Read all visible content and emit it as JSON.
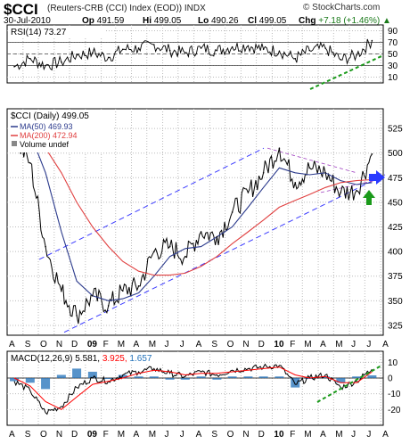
{
  "header": {
    "symbol": "$CCI",
    "name": "(Reuters-CRB (CCI) Index (EOD)) INDX",
    "brand": "© StockCharts.com",
    "date": "30-Jul-2010",
    "op_label": "Op",
    "op": "491.59",
    "hi_label": "Hi",
    "hi": "499.05",
    "lo_label": "Lo",
    "lo": "490.26",
    "cl_label": "Cl",
    "cl": "499.05",
    "chg_label": "Chg",
    "chg": "+7.18 (+1.46%)",
    "chg_arrow": "▲"
  },
  "colors": {
    "price": "#000000",
    "ma50": "#2b3a8c",
    "ma200": "#e04040",
    "channel": "#3a3aff",
    "green": "#1a9a1a",
    "macd_sig": "#ff0000",
    "hist": "#1f6fb8",
    "arrow_blue": "#2a3aff"
  },
  "chart_data": [
    {
      "type": "line",
      "panel": "RSI",
      "legend": "RSI(14) 73.27",
      "y_ticks": [
        10,
        30,
        50,
        70,
        90
      ],
      "ylim": [
        0,
        100
      ],
      "reference_lines": [
        30,
        50,
        70
      ],
      "series": [
        {
          "name": "RSI(14)",
          "x": [
            "2008-08",
            "2008-09",
            "2008-10",
            "2008-11",
            "2008-12",
            "2009-01",
            "2009-02",
            "2009-03",
            "2009-04",
            "2009-05",
            "2009-06",
            "2009-07",
            "2009-08",
            "2009-09",
            "2009-10",
            "2009-11",
            "2009-12",
            "2010-01",
            "2010-02",
            "2010-03",
            "2010-04",
            "2010-05",
            "2010-06",
            "2010-07"
          ],
          "values": [
            28,
            42,
            30,
            36,
            48,
            52,
            44,
            58,
            60,
            66,
            56,
            52,
            60,
            56,
            62,
            64,
            58,
            55,
            42,
            56,
            60,
            40,
            48,
            73
          ]
        }
      ]
    },
    {
      "type": "line",
      "panel": "Price",
      "legend": [
        "$CCI (Daily) 499.05",
        "MA(50) 469.93",
        "MA(200) 472.94",
        "Volume undef"
      ],
      "y_ticks": [
        325,
        350,
        375,
        400,
        425,
        450,
        475,
        500,
        525
      ],
      "ylim": [
        315,
        545
      ],
      "x_ticks": [
        "A",
        "S",
        "O",
        "N",
        "D",
        "09",
        "F",
        "M",
        "A",
        "M",
        "J",
        "J",
        "A",
        "S",
        "O",
        "N",
        "D",
        "10",
        "F",
        "M",
        "A",
        "M",
        "J",
        "J",
        "A"
      ],
      "series": [
        {
          "name": "$CCI (Daily)",
          "x": [
            "2008-08",
            "2008-09",
            "2008-10",
            "2008-11",
            "2008-12",
            "2009-01",
            "2009-02",
            "2009-03",
            "2009-04",
            "2009-05",
            "2009-06",
            "2009-07",
            "2009-08",
            "2009-09",
            "2009-10",
            "2009-11",
            "2009-12",
            "2010-01",
            "2010-02",
            "2010-03",
            "2010-04",
            "2010-05",
            "2010-06",
            "2010-07"
          ],
          "values": [
            515,
            490,
            405,
            360,
            335,
            355,
            345,
            360,
            365,
            400,
            405,
            395,
            420,
            415,
            440,
            460,
            480,
            505,
            470,
            485,
            480,
            460,
            462,
            499
          ]
        },
        {
          "name": "MA(50)",
          "x": [
            "2008-09",
            "2008-10",
            "2008-11",
            "2008-12",
            "2009-01",
            "2009-02",
            "2009-03",
            "2009-04",
            "2009-05",
            "2009-06",
            "2009-07",
            "2009-08",
            "2009-09",
            "2009-10",
            "2009-11",
            "2009-12",
            "2010-01",
            "2010-02",
            "2010-03",
            "2010-04",
            "2010-05",
            "2010-06",
            "2010-07"
          ],
          "values": [
            520,
            480,
            420,
            370,
            355,
            350,
            352,
            358,
            375,
            395,
            403,
            405,
            415,
            425,
            445,
            465,
            485,
            480,
            478,
            480,
            472,
            468,
            470
          ]
        },
        {
          "name": "MA(200)",
          "x": [
            "2008-09",
            "2008-10",
            "2008-11",
            "2008-12",
            "2009-01",
            "2009-02",
            "2009-03",
            "2009-04",
            "2009-05",
            "2009-06",
            "2009-07",
            "2009-08",
            "2009-09",
            "2009-10",
            "2009-11",
            "2009-12",
            "2010-01",
            "2010-02",
            "2010-03",
            "2010-04",
            "2010-05",
            "2010-06",
            "2010-07"
          ],
          "values": [
            525,
            505,
            480,
            450,
            425,
            405,
            390,
            380,
            376,
            376,
            378,
            385,
            395,
            408,
            420,
            432,
            445,
            452,
            458,
            465,
            470,
            472,
            473
          ]
        }
      ]
    },
    {
      "type": "line",
      "panel": "MACD",
      "legend": {
        "label": "MACD(12,26,9)",
        "macd": "5.581",
        "signal": "3.925",
        "hist": "1.657"
      },
      "y_ticks": [
        -20,
        -10,
        0,
        10
      ],
      "ylim": [
        -30,
        17
      ],
      "x_ticks": [
        "A",
        "S",
        "O",
        "N",
        "D",
        "09",
        "F",
        "M",
        "A",
        "M",
        "J",
        "J",
        "A",
        "S",
        "O",
        "N",
        "D",
        "10",
        "F",
        "M",
        "A",
        "M",
        "J",
        "J",
        "A"
      ],
      "series": [
        {
          "name": "MACD",
          "x": [
            "2008-08",
            "2008-09",
            "2008-10",
            "2008-11",
            "2008-12",
            "2009-01",
            "2009-02",
            "2009-03",
            "2009-04",
            "2009-05",
            "2009-06",
            "2009-07",
            "2009-08",
            "2009-09",
            "2009-10",
            "2009-11",
            "2009-12",
            "2010-01",
            "2010-02",
            "2010-03",
            "2010-04",
            "2010-05",
            "2010-06",
            "2010-07"
          ],
          "values": [
            -2,
            -8,
            -22,
            -18,
            -6,
            0,
            -2,
            2,
            4,
            6,
            3,
            1,
            4,
            2,
            5,
            6,
            7,
            8,
            -4,
            0,
            2,
            -6,
            -2,
            5.6
          ]
        },
        {
          "name": "Signal",
          "x": [
            "2008-08",
            "2008-09",
            "2008-10",
            "2008-11",
            "2008-12",
            "2009-01",
            "2009-02",
            "2009-03",
            "2009-04",
            "2009-05",
            "2009-06",
            "2009-07",
            "2009-08",
            "2009-09",
            "2009-10",
            "2009-11",
            "2009-12",
            "2010-01",
            "2010-02",
            "2010-03",
            "2010-04",
            "2010-05",
            "2010-06",
            "2010-07"
          ],
          "values": [
            0,
            -5,
            -15,
            -20,
            -12,
            -4,
            -2,
            0,
            3,
            5,
            4,
            2,
            3,
            3,
            4,
            5,
            6,
            7,
            2,
            0,
            1,
            -3,
            -3,
            3.9
          ]
        }
      ]
    }
  ]
}
